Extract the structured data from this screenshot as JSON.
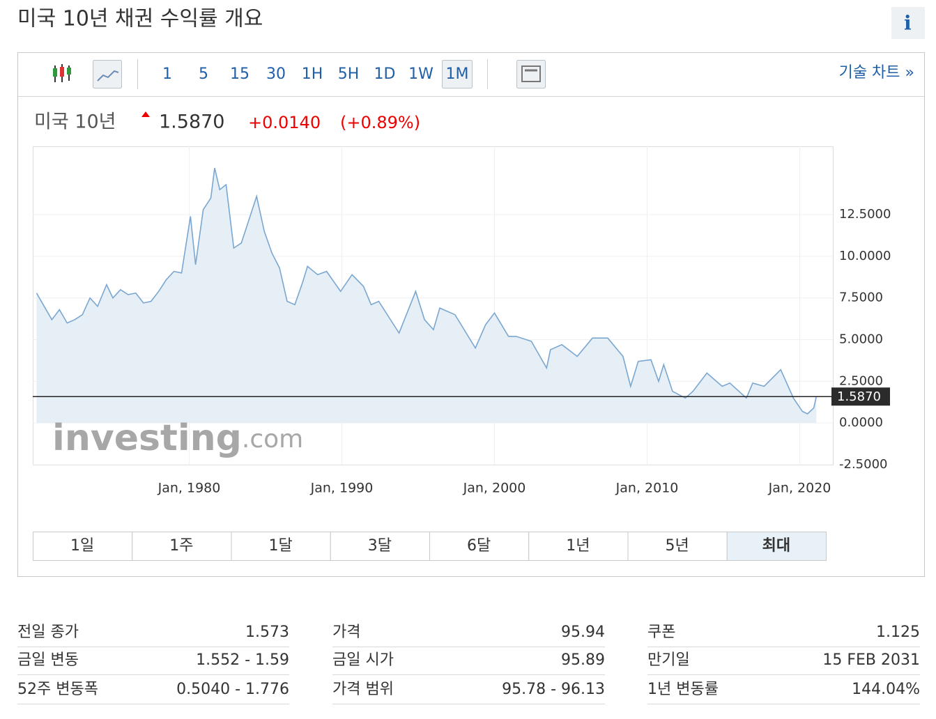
{
  "header": {
    "title": "미국 10년 채권 수익률 개요",
    "info_icon": "i"
  },
  "toolbar": {
    "intervals": [
      "1",
      "5",
      "15",
      "30",
      "1H",
      "5H",
      "1D",
      "1W",
      "1M"
    ],
    "active_interval": 8,
    "technical_chart_link": "기술 차트 »"
  },
  "quote": {
    "name": "미국 10년",
    "price": "1.5870",
    "change": "+0.0140",
    "change_pct": "(+0.89%)"
  },
  "chart_data": {
    "type": "area",
    "color": "#7aa7d1",
    "fill": "#e6eef6",
    "x": [
      "1970-01",
      "1970-07",
      "1971-01",
      "1971-07",
      "1972-01",
      "1972-07",
      "1973-01",
      "1973-07",
      "1974-01",
      "1974-08",
      "1975-01",
      "1975-07",
      "1976-01",
      "1976-07",
      "1977-01",
      "1977-07",
      "1978-01",
      "1978-07",
      "1979-01",
      "1979-07",
      "1980-02",
      "1980-06",
      "1980-12",
      "1981-06",
      "1981-09",
      "1982-01",
      "1982-06",
      "1982-12",
      "1983-06",
      "1984-06",
      "1984-12",
      "1985-06",
      "1985-12",
      "1986-06",
      "1986-12",
      "1987-06",
      "1987-10",
      "1988-06",
      "1989-01",
      "1989-12",
      "1990-09",
      "1991-06",
      "1991-12",
      "1992-06",
      "1993-10",
      "1994-11",
      "1995-06",
      "1996-01",
      "1996-06",
      "1997-06",
      "1998-10",
      "1999-06",
      "2000-01",
      "2000-12",
      "2001-06",
      "2002-06",
      "2003-06",
      "2003-09",
      "2004-06",
      "2005-06",
      "2006-06",
      "2007-06",
      "2008-06",
      "2008-12",
      "2009-06",
      "2010-04",
      "2010-10",
      "2011-02",
      "2011-09",
      "2012-07",
      "2013-01",
      "2013-12",
      "2014-12",
      "2015-06",
      "2016-07",
      "2016-12",
      "2017-09",
      "2018-10",
      "2019-08",
      "2020-03",
      "2020-07",
      "2020-12",
      "2021-02"
    ],
    "values": [
      7.8,
      7.0,
      6.2,
      6.8,
      6.0,
      6.2,
      6.5,
      7.5,
      7.0,
      8.3,
      7.5,
      8.0,
      7.7,
      7.8,
      7.2,
      7.3,
      7.9,
      8.6,
      9.1,
      9.0,
      12.4,
      9.5,
      12.8,
      13.5,
      15.3,
      14.0,
      14.3,
      10.5,
      10.8,
      13.6,
      11.5,
      10.2,
      9.3,
      7.3,
      7.1,
      8.4,
      9.4,
      8.9,
      9.1,
      7.9,
      8.9,
      8.2,
      7.1,
      7.3,
      5.4,
      7.9,
      6.2,
      5.6,
      6.9,
      6.5,
      4.5,
      5.9,
      6.6,
      5.2,
      5.2,
      4.9,
      3.3,
      4.4,
      4.7,
      4.0,
      5.1,
      5.1,
      4.0,
      2.2,
      3.7,
      3.8,
      2.5,
      3.5,
      1.9,
      1.5,
      1.9,
      3.0,
      2.2,
      2.4,
      1.5,
      2.4,
      2.2,
      3.2,
      1.5,
      0.7,
      0.55,
      0.9,
      1.587
    ],
    "xlim": [
      "1969-10",
      "2022-03"
    ],
    "xticks": [
      {
        "value": "1980-01",
        "label": "Jan, 1980"
      },
      {
        "value": "1990-01",
        "label": "Jan, 1990"
      },
      {
        "value": "2000-01",
        "label": "Jan, 2000"
      },
      {
        "value": "2010-01",
        "label": "Jan, 2010"
      },
      {
        "value": "2020-01",
        "label": "Jan, 2020"
      }
    ],
    "ylim": [
      -2.5,
      16.6
    ],
    "yticks": [
      {
        "value": -2.5,
        "label": "-2.5000"
      },
      {
        "value": 0,
        "label": "0.0000"
      },
      {
        "value": 2.5,
        "label": "2.5000"
      },
      {
        "value": 5,
        "label": "5.0000"
      },
      {
        "value": 7.5,
        "label": "7.5000"
      },
      {
        "value": 10,
        "label": "10.0000"
      },
      {
        "value": 12.5,
        "label": "12.5000"
      }
    ],
    "grid": true,
    "last_value": 1.587,
    "last_value_label": "1.5870",
    "watermark": [
      "investing",
      ".com"
    ]
  },
  "ranges": {
    "buttons": [
      "1일",
      "1주",
      "1달",
      "3달",
      "6달",
      "1년",
      "5년",
      "최대"
    ],
    "active": 7
  },
  "stats": [
    [
      {
        "label": "전일 종가",
        "value": "1.573"
      },
      {
        "label": "금일 변동",
        "value": "1.552 - 1.59"
      },
      {
        "label": "52주 변동폭",
        "value": "0.5040 - 1.776"
      }
    ],
    [
      {
        "label": "가격",
        "value": "95.94"
      },
      {
        "label": "금일 시가",
        "value": "95.89"
      },
      {
        "label": "가격 범위",
        "value": "95.78 - 96.13"
      }
    ],
    [
      {
        "label": "쿠폰",
        "value": "1.125"
      },
      {
        "label": "만기일",
        "value": "15 FEB 2031"
      },
      {
        "label": "1년 변동률",
        "value": "144.04%"
      }
    ]
  ]
}
